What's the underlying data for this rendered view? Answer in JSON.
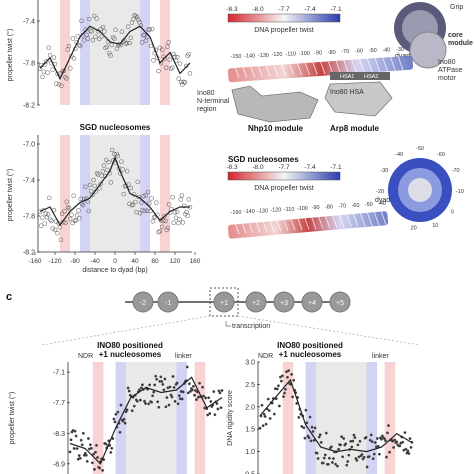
{
  "panel_c_label": "c",
  "panel_b_title": "SGD nucleosomes",
  "panel_b_struct_title": "SGD nucleosomes",
  "colorbar": {
    "ticks": [
      "-8.3",
      "-8.0",
      "-7.7",
      "-7.4",
      "-7.1"
    ],
    "title": "DNA propeller twist",
    "colors": {
      "low": "#d7262b",
      "mid": "#f5f5f5",
      "high": "#2b3bb0"
    }
  },
  "structure_labels": {
    "grip": "Grip",
    "core_module": "core\nmodule",
    "ino80_atpase": "Ino80\nATPase\nmotor",
    "dyad": "dyad",
    "ino80_nterm": "Ino80\nN-terminal\nregion",
    "nhp10": "Nhp10 module",
    "ino80_hsa": "Ino80 HSA",
    "arp8": "Arp8 module",
    "hsa1": "HSA1",
    "hsa2": "HSA2"
  },
  "dna_ticks_a": [
    "-150",
    "-140",
    "-130",
    "-120",
    "-110",
    "-100",
    "-90",
    "-80",
    "-70",
    "-60",
    "-50",
    "-40",
    "-30"
  ],
  "dna_ticks_b": [
    "-150",
    "-140",
    "-130",
    "-120",
    "-110",
    "-100",
    "-90",
    "-80",
    "-70",
    "-60",
    "-50",
    "-40"
  ],
  "nuc_ticks_b": [
    "-20",
    "-30",
    "-40",
    "-50",
    "-60",
    "-70",
    "-10",
    "0",
    "10",
    "20"
  ],
  "schematic": {
    "nucleosomes": [
      "-2",
      "-1",
      "+1",
      "+2",
      "+3",
      "+4",
      "+5"
    ],
    "transcription": "transcription"
  },
  "chart_data": [
    {
      "type": "scatter",
      "title": "",
      "xlabel": "",
      "ylabel": "propeller twist (°)",
      "ylim": [
        -8.2,
        -7.2
      ],
      "yticks": [
        "-7.4",
        "-7.8",
        "-8.2"
      ],
      "x": [
        -150,
        -130,
        -110,
        -90,
        -70,
        -50,
        -30,
        -10,
        10,
        30,
        50,
        70,
        90,
        110,
        130,
        150
      ],
      "y": [
        -7.85,
        -7.75,
        -7.95,
        -7.75,
        -7.55,
        -7.45,
        -7.5,
        -7.6,
        -7.62,
        -7.5,
        -7.45,
        -7.55,
        -7.8,
        -7.7,
        -7.9,
        -7.8
      ],
      "bands": [
        {
          "from": -110,
          "to": -90,
          "color": "red"
        },
        {
          "from": -70,
          "to": -50,
          "color": "blue"
        },
        {
          "from": 50,
          "to": 70,
          "color": "blue"
        },
        {
          "from": 90,
          "to": 110,
          "color": "red"
        }
      ]
    },
    {
      "type": "scatter",
      "title": "SGD nucleosomes",
      "xlabel": "distance to dyad (bp)",
      "ylabel": "propeller twist (°)",
      "ylim": [
        -8.2,
        -6.9
      ],
      "yticks": [
        "-7.0",
        "-7.4",
        "-7.8",
        "-8.2"
      ],
      "xticks": [
        "-160",
        "-120",
        "-80",
        "-40",
        "0",
        "40",
        "80",
        "120",
        "160"
      ],
      "x": [
        -150,
        -130,
        -110,
        -90,
        -70,
        -50,
        -30,
        -10,
        0,
        10,
        30,
        50,
        70,
        90,
        110,
        130,
        150
      ],
      "y": [
        -7.75,
        -7.7,
        -7.9,
        -7.75,
        -7.65,
        -7.6,
        -7.45,
        -7.3,
        -7.15,
        -7.3,
        -7.55,
        -7.6,
        -7.7,
        -7.85,
        -7.75,
        -7.7,
        -7.7
      ],
      "bands": [
        {
          "from": -110,
          "to": -90,
          "color": "red"
        },
        {
          "from": -70,
          "to": -50,
          "color": "blue"
        },
        {
          "from": 50,
          "to": 70,
          "color": "blue"
        },
        {
          "from": 90,
          "to": 110,
          "color": "red"
        }
      ]
    },
    {
      "type": "scatter",
      "title": "INO80 positioned\n+1 nucleosomes",
      "xlabel": "",
      "ylabel": "propeller twist (°)",
      "ylim": [
        -9.1,
        -6.9
      ],
      "yticks": [
        "-7.1",
        "-7.7",
        "-8.3",
        "-8.9"
      ],
      "annotations": [
        "NDR",
        "linker"
      ],
      "x": [
        0,
        1,
        2,
        3,
        4,
        5,
        6,
        7,
        8,
        9,
        10
      ],
      "y": [
        -8.5,
        -8.6,
        -8.9,
        -8.2,
        -7.6,
        -7.4,
        -7.5,
        -7.45,
        -7.2,
        -7.8,
        -7.6
      ],
      "bands": [
        {
          "from": 0.15,
          "to": 0.22,
          "color": "red"
        },
        {
          "from": 0.3,
          "to": 0.37,
          "color": "blue"
        },
        {
          "from": 0.7,
          "to": 0.77,
          "color": "blue"
        },
        {
          "from": 0.82,
          "to": 0.89,
          "color": "red"
        }
      ]
    },
    {
      "type": "scatter",
      "title": "INO80 positioned\n+1 nucleosomes",
      "xlabel": "",
      "ylabel": "DNA rigidity score",
      "ylim": [
        0.5,
        3.0
      ],
      "yticks": [
        "3.0",
        "2.5",
        "2.0",
        "1.5",
        "1.0",
        "0.5"
      ],
      "annotations": [
        "NDR",
        "linker"
      ],
      "x": [
        0,
        1,
        2,
        3,
        4,
        5,
        6,
        7,
        8,
        9,
        10
      ],
      "y": [
        1.8,
        2.2,
        2.6,
        1.6,
        1.1,
        1.0,
        1.05,
        1.0,
        1.1,
        1.4,
        1.2
      ],
      "bands": [
        {
          "from": 0.15,
          "to": 0.22,
          "color": "red"
        },
        {
          "from": 0.3,
          "to": 0.37,
          "color": "blue"
        },
        {
          "from": 0.7,
          "to": 0.77,
          "color": "blue"
        },
        {
          "from": 0.82,
          "to": 0.89,
          "color": "red"
        }
      ]
    }
  ]
}
